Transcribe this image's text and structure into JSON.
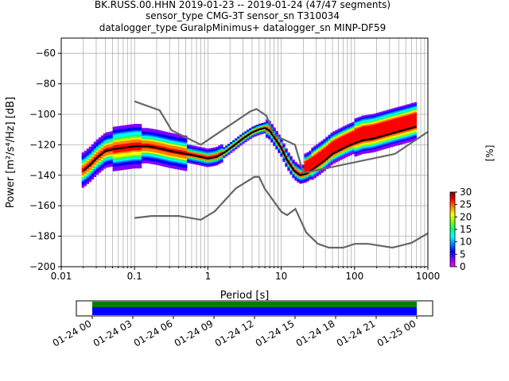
{
  "title_lines": [
    "BK.RUSS.00.HHN   2019-01-23 -- 2019-01-24  (47/47 segments)",
    "sensor_type CMG-3T sensor_sn T310034",
    "datalogger_type GuralpMinimus+ datalogger_sn MINP-DF59"
  ],
  "chart_data": {
    "type": "heatmap",
    "xlabel": "Period [s]",
    "ylabel": "Power [m²/s⁴/Hz] [dB]",
    "xscale": "log",
    "xlim": [
      0.01,
      1000
    ],
    "ylim": [
      -200,
      -50
    ],
    "xticks": [
      {
        "value": 0.01,
        "label": "0.01"
      },
      {
        "value": 0.1,
        "label": "0.1"
      },
      {
        "value": 1,
        "label": "1"
      },
      {
        "value": 10,
        "label": "10"
      },
      {
        "value": 100,
        "label": "100"
      },
      {
        "value": 1000,
        "label": "1000"
      }
    ],
    "yticks": [
      -200,
      -180,
      -160,
      -140,
      -120,
      -100,
      -80,
      -60
    ],
    "grid": true,
    "colorbar": {
      "label": "[%]",
      "range": [
        0,
        30
      ],
      "ticks": [
        0,
        5,
        10,
        15,
        20,
        25,
        30
      ],
      "colors": [
        "#ffffff",
        "#ff00ff",
        "#0000ff",
        "#00ffff",
        "#00ff00",
        "#ffff00",
        "#ff8800",
        "#ff0000",
        "#800000"
      ]
    },
    "series": [
      {
        "role": "mode",
        "color": "#000000",
        "x": [
          0.02,
          0.025,
          0.03,
          0.04,
          0.05,
          0.07,
          0.1,
          0.15,
          0.2,
          0.3,
          0.5,
          0.8,
          1.0,
          1.3,
          1.7,
          2.2,
          3.0,
          4.0,
          5.0,
          6.0,
          7.0,
          8.0,
          10,
          12,
          15,
          18,
          22,
          27,
          33,
          40,
          50,
          60,
          80,
          100,
          130,
          180,
          250,
          350,
          500,
          700
        ],
        "y": [
          -137,
          -133,
          -129,
          -124,
          -123,
          -122,
          -121,
          -121,
          -122,
          -124,
          -126,
          -128,
          -129,
          -128,
          -125,
          -121,
          -116,
          -112,
          -110,
          -109,
          -111,
          -115,
          -122,
          -130,
          -137,
          -140,
          -139,
          -136,
          -133,
          -130,
          -126,
          -124,
          -121,
          -119,
          -117,
          -116,
          -114,
          -112,
          -110,
          -108
        ]
      },
      {
        "role": "noise-model-high",
        "color": "#666666",
        "x": [
          0.1,
          0.22,
          0.32,
          0.8,
          3.8,
          4.6,
          6.3,
          7.9,
          15.4,
          20,
          354.8,
          1000
        ],
        "y": [
          -91.5,
          -97.4,
          -110.5,
          -120,
          -98,
          -96.5,
          -101,
          -113.5,
          -120,
          -138.5,
          -126,
          -111.5
        ]
      },
      {
        "role": "noise-model-low",
        "color": "#666666",
        "x": [
          0.1,
          0.17,
          0.4,
          0.8,
          1.24,
          2.4,
          4.3,
          5.0,
          6.0,
          10,
          12,
          15.6,
          21.9,
          31.6,
          45,
          70,
          101,
          154,
          328,
          600,
          1000
        ],
        "y": [
          -168,
          -166.7,
          -166.7,
          -169.2,
          -163.7,
          -148.6,
          -141.1,
          -141.1,
          -149,
          -163.8,
          -166.2,
          -162.1,
          -177.5,
          -185,
          -187.5,
          -187.5,
          -185,
          -185,
          -187.5,
          -184.4,
          -178
        ]
      }
    ]
  },
  "coverage": {
    "tick_labels": [
      "01-24 00",
      "01-24 03",
      "01-24 06",
      "01-24 09",
      "01-24 12",
      "01-24 15",
      "01-24 18",
      "01-24 21",
      "01-25 00"
    ],
    "start_fraction": 0.0,
    "end_fraction": 1.0,
    "colors": {
      "data": "#0000ff",
      "status": "#008000"
    }
  }
}
